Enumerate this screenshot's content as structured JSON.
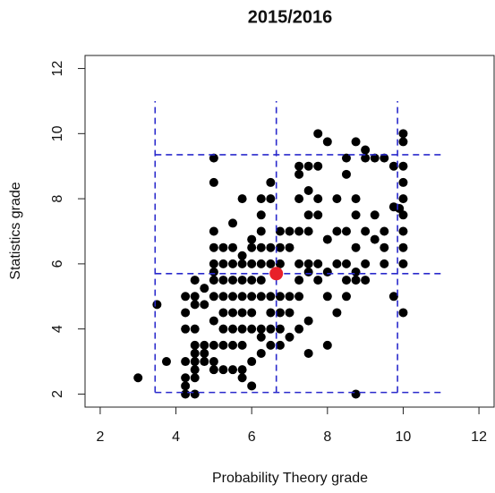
{
  "chart_data": {
    "type": "scatter",
    "title": "2015/2016",
    "x_label": "Probability Theory grade",
    "y_label": "Statistics grade",
    "xlim": [
      1.6,
      12.4
    ],
    "ylim": [
      1.6,
      12.4
    ],
    "xticks": [
      2,
      4,
      6,
      8,
      10,
      12
    ],
    "yticks": [
      2,
      4,
      6,
      8,
      10,
      12
    ],
    "color": "#000000",
    "x": [
      3,
      3.5,
      3.75,
      4.25,
      4.25,
      4.5,
      4.25,
      4.5,
      4.5,
      4.25,
      4.5,
      4.75,
      4.5,
      4.75,
      4.75,
      5,
      4.5,
      4.25,
      4.5,
      4.25,
      4.25,
      4.5,
      4.5,
      4.75,
      5,
      5,
      5,
      5,
      5,
      5,
      5,
      5,
      4.75,
      4.5,
      5,
      5,
      5,
      5.25,
      5.5,
      5.75,
      5.75,
      6,
      5.25,
      5.5,
      5.75,
      5.25,
      5.5,
      5.75,
      6,
      5.25,
      5.5,
      5.75,
      6,
      5.25,
      5.5,
      5.75,
      6,
      6.25,
      5.25,
      5.5,
      5.75,
      6,
      6.25,
      5.25,
      5.5,
      5.75,
      6,
      6.25,
      5.25,
      5.5,
      5.75,
      6,
      6.25,
      6.5,
      5.5,
      5.75,
      6,
      6.25,
      6.25,
      6.5,
      6.5,
      6.25,
      6.5,
      6.5,
      6.5,
      6.25,
      6.5,
      6.75,
      6.25,
      6.5,
      6.75,
      6.25,
      6,
      6.75,
      6.75,
      6.75,
      6.75,
      6.75,
      7,
      7,
      7,
      7,
      7,
      7.25,
      7.25,
      7.25,
      7.25,
      7.25,
      7.25,
      7.25,
      7.25,
      7.5,
      7.5,
      7.5,
      7.5,
      7.5,
      7.5,
      7.5,
      7.5,
      7.75,
      7.75,
      7.75,
      7.75,
      7.75,
      7.75,
      8,
      8,
      8,
      8,
      8,
      8.25,
      8.25,
      8.25,
      8.25,
      8.5,
      8.5,
      8.5,
      8.5,
      8.5,
      8.5,
      8.75,
      8.75,
      8.75,
      8.75,
      8.75,
      8.75,
      8.75,
      9,
      9,
      9,
      9,
      9,
      9.25,
      9.25,
      9.25,
      9.5,
      9.5,
      9.5,
      9.5,
      9.75,
      9.75,
      10,
      10,
      10,
      10,
      10,
      10,
      10,
      10,
      10,
      10,
      9.75,
      9.9
    ],
    "y": [
      2.5,
      4.75,
      3,
      2.25,
      2,
      2,
      2.5,
      2.5,
      2.75,
      3,
      3,
      3,
      3.25,
      3.25,
      3.5,
      3.5,
      3.5,
      4,
      4,
      4.5,
      5,
      5,
      5.5,
      5.25,
      5,
      5.5,
      5.75,
      6,
      6.5,
      7,
      8.5,
      9.25,
      4.75,
      4.75,
      4.25,
      3,
      2.75,
      2.75,
      2.75,
      2.75,
      2.5,
      2.25,
      3.5,
      3.5,
      3.5,
      4,
      4,
      4,
      4,
      4.5,
      4.5,
      4.5,
      4.5,
      5,
      5,
      5,
      5,
      5,
      5.5,
      5.5,
      5.5,
      5.5,
      5.5,
      6,
      6,
      6,
      6,
      6,
      6.5,
      6.5,
      6.25,
      6.5,
      6.5,
      6.5,
      7.25,
      8,
      6.75,
      7,
      7.5,
      8,
      8.5,
      8,
      6,
      5,
      4.5,
      4,
      4,
      4,
      3.75,
      3.5,
      3.5,
      3.25,
      3,
      4.5,
      5,
      6,
      6.5,
      7,
      7,
      6.5,
      5,
      4.5,
      3.75,
      4,
      5,
      5.5,
      6,
      7,
      8,
      8.75,
      9,
      9,
      8.25,
      7.5,
      7,
      6,
      5.75,
      4.25,
      3.25,
      8,
      7.5,
      6,
      5.5,
      10,
      9,
      9.75,
      6.75,
      5.75,
      5,
      3.5,
      8,
      7,
      6,
      4.5,
      8.75,
      9.25,
      7,
      6,
      5.5,
      5,
      9.75,
      8,
      7.5,
      6.5,
      5.75,
      5.5,
      2,
      9.5,
      9.25,
      7,
      6,
      5.5,
      9.25,
      7.5,
      6.75,
      9.25,
      7,
      6.5,
      6,
      7.75,
      5,
      10,
      9.75,
      9,
      8.5,
      8,
      7.5,
      7,
      6.5,
      6,
      4.5,
      9,
      7.7
    ],
    "highlight": {
      "x": 6.65,
      "y": 5.7,
      "color": "#e8202a"
    },
    "guides": {
      "x": [
        3.45,
        6.65,
        9.85
      ],
      "y": [
        2.05,
        5.7,
        9.35
      ],
      "end": 11,
      "color": "#2a2acc"
    }
  }
}
